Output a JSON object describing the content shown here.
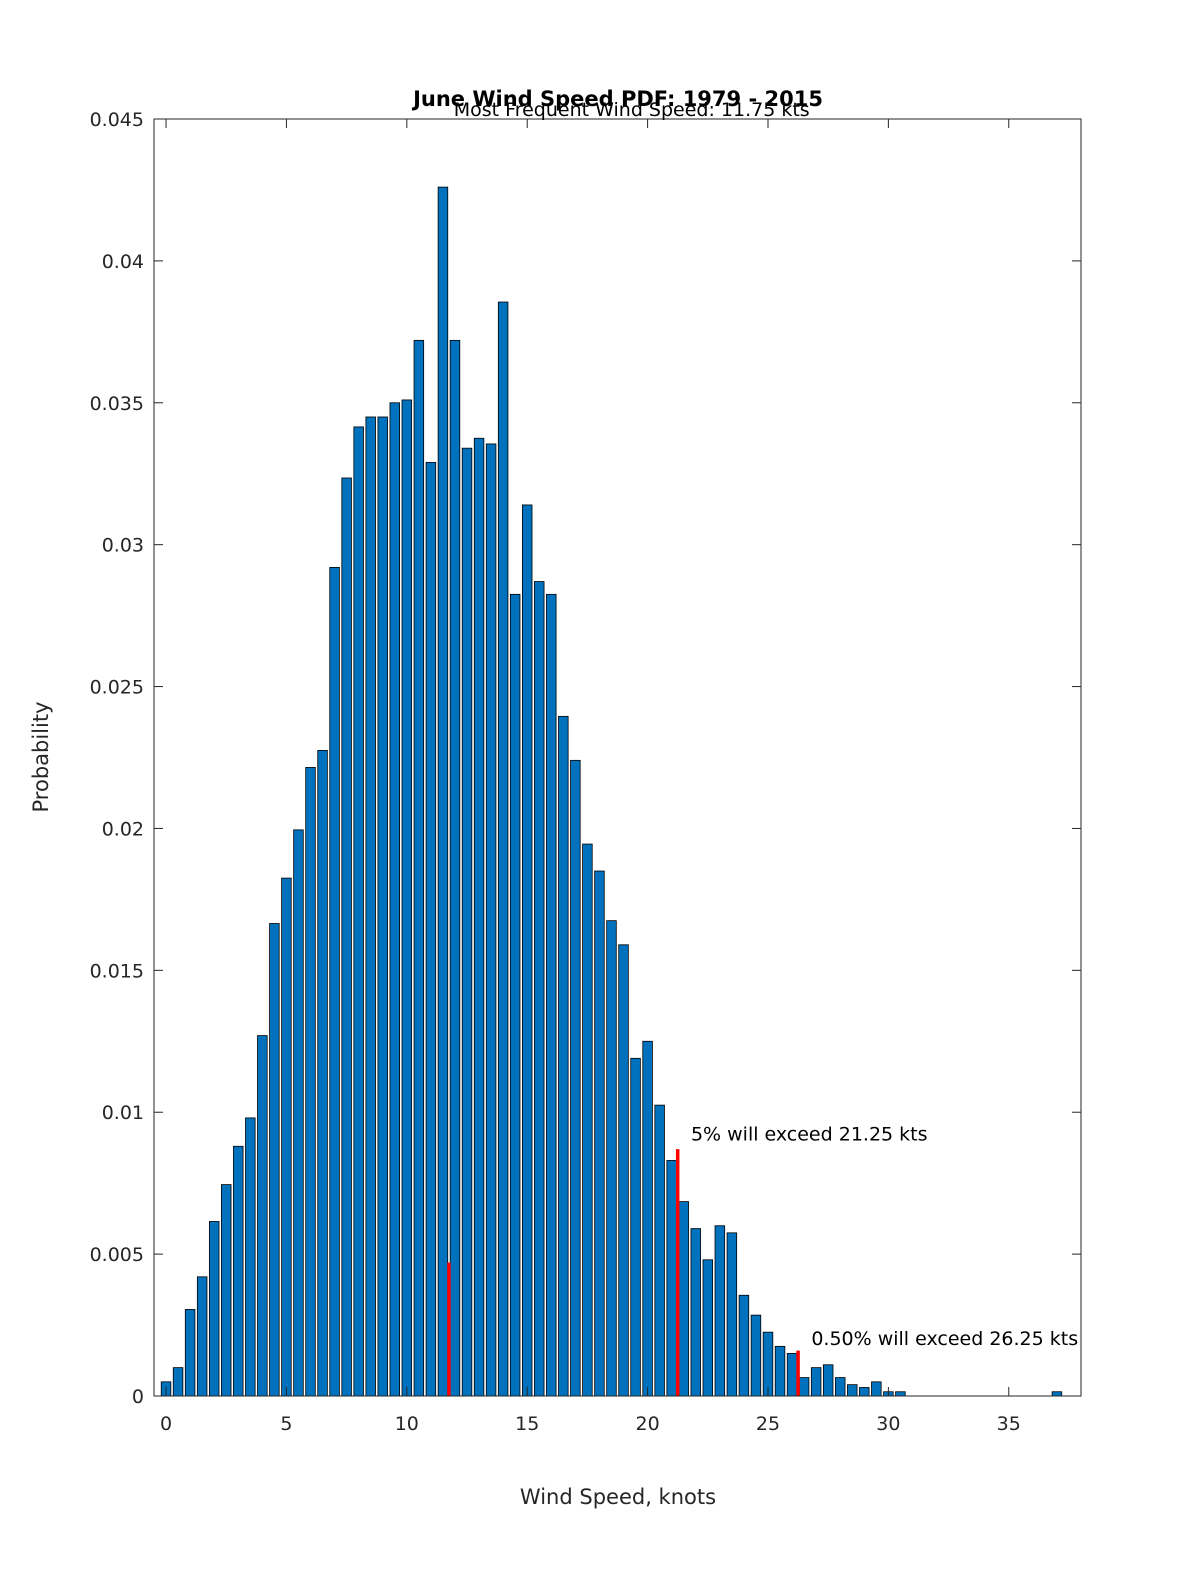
{
  "chart_data": {
    "type": "bar",
    "title": "June Wind Speed PDF: 1979 - 2015",
    "xlabel": "Wind Speed, knots",
    "ylabel": "Probability",
    "xlim": [
      -0.5,
      38
    ],
    "ylim": [
      0,
      0.045
    ],
    "xticks": [
      0,
      5,
      10,
      15,
      20,
      25,
      30,
      35
    ],
    "xtick_labels": [
      "0",
      "5",
      "10",
      "15",
      "20",
      "25",
      "30",
      "35"
    ],
    "yticks": [
      0,
      0.005,
      0.01,
      0.015,
      0.02,
      0.025,
      0.03,
      0.035,
      0.04,
      0.045
    ],
    "ytick_labels": [
      "0",
      "0.005",
      "0.01",
      "0.015",
      "0.02",
      "0.025",
      "0.03",
      "0.035",
      "0.04",
      "0.045"
    ],
    "grid": false,
    "bar_color": "#0072BD",
    "bin_width": 0.5,
    "x": [
      0,
      0.5,
      1,
      1.5,
      2,
      2.5,
      3,
      3.5,
      4,
      4.5,
      5,
      5.5,
      6,
      6.5,
      7,
      7.5,
      8,
      8.5,
      9,
      9.5,
      10,
      10.5,
      11,
      11.5,
      12,
      12.5,
      13,
      13.5,
      14,
      14.5,
      15,
      15.5,
      16,
      16.5,
      17,
      17.5,
      18,
      18.5,
      19,
      19.5,
      20,
      20.5,
      21,
      21.5,
      22,
      22.5,
      23,
      23.5,
      24,
      24.5,
      25,
      25.5,
      26,
      26.5,
      27,
      27.5,
      28,
      28.5,
      29,
      29.5,
      30,
      30.5,
      37
    ],
    "values": [
      0.0005,
      0.001,
      0.00305,
      0.0042,
      0.00615,
      0.00745,
      0.0088,
      0.0098,
      0.0127,
      0.01665,
      0.01825,
      0.01995,
      0.02215,
      0.02275,
      0.0292,
      0.03235,
      0.03415,
      0.0345,
      0.0345,
      0.035,
      0.0351,
      0.0372,
      0.0329,
      0.0426,
      0.0372,
      0.0334,
      0.03375,
      0.03355,
      0.03855,
      0.02825,
      0.0314,
      0.0287,
      0.02825,
      0.02395,
      0.0224,
      0.01945,
      0.0185,
      0.01675,
      0.0159,
      0.0119,
      0.0125,
      0.01025,
      0.0083,
      0.00685,
      0.0059,
      0.0048,
      0.006,
      0.00575,
      0.00355,
      0.00285,
      0.00225,
      0.00175,
      0.0015,
      0.00065,
      0.001,
      0.0011,
      0.00065,
      0.0004,
      0.0003,
      0.0005,
      0.00015,
      0.00015,
      0.00015
    ],
    "marker_lines": [
      {
        "x": 11.75,
        "y_top": 0.0047,
        "color": "#FF0000",
        "label": "Most Frequent Wind Speed: 11.75 kts",
        "label_x": 11.95,
        "label_y": 0.0451
      },
      {
        "x": 21.25,
        "y_top": 0.0087,
        "color": "#FF0000",
        "label": "5% will exceed 21.25 kts",
        "label_x": 21.8,
        "label_y": 0.009
      },
      {
        "x": 26.25,
        "y_top": 0.0016,
        "color": "#FF0000",
        "label": "0.50% will exceed 26.25 kts",
        "label_x": 26.8,
        "label_y": 0.0018
      }
    ]
  }
}
